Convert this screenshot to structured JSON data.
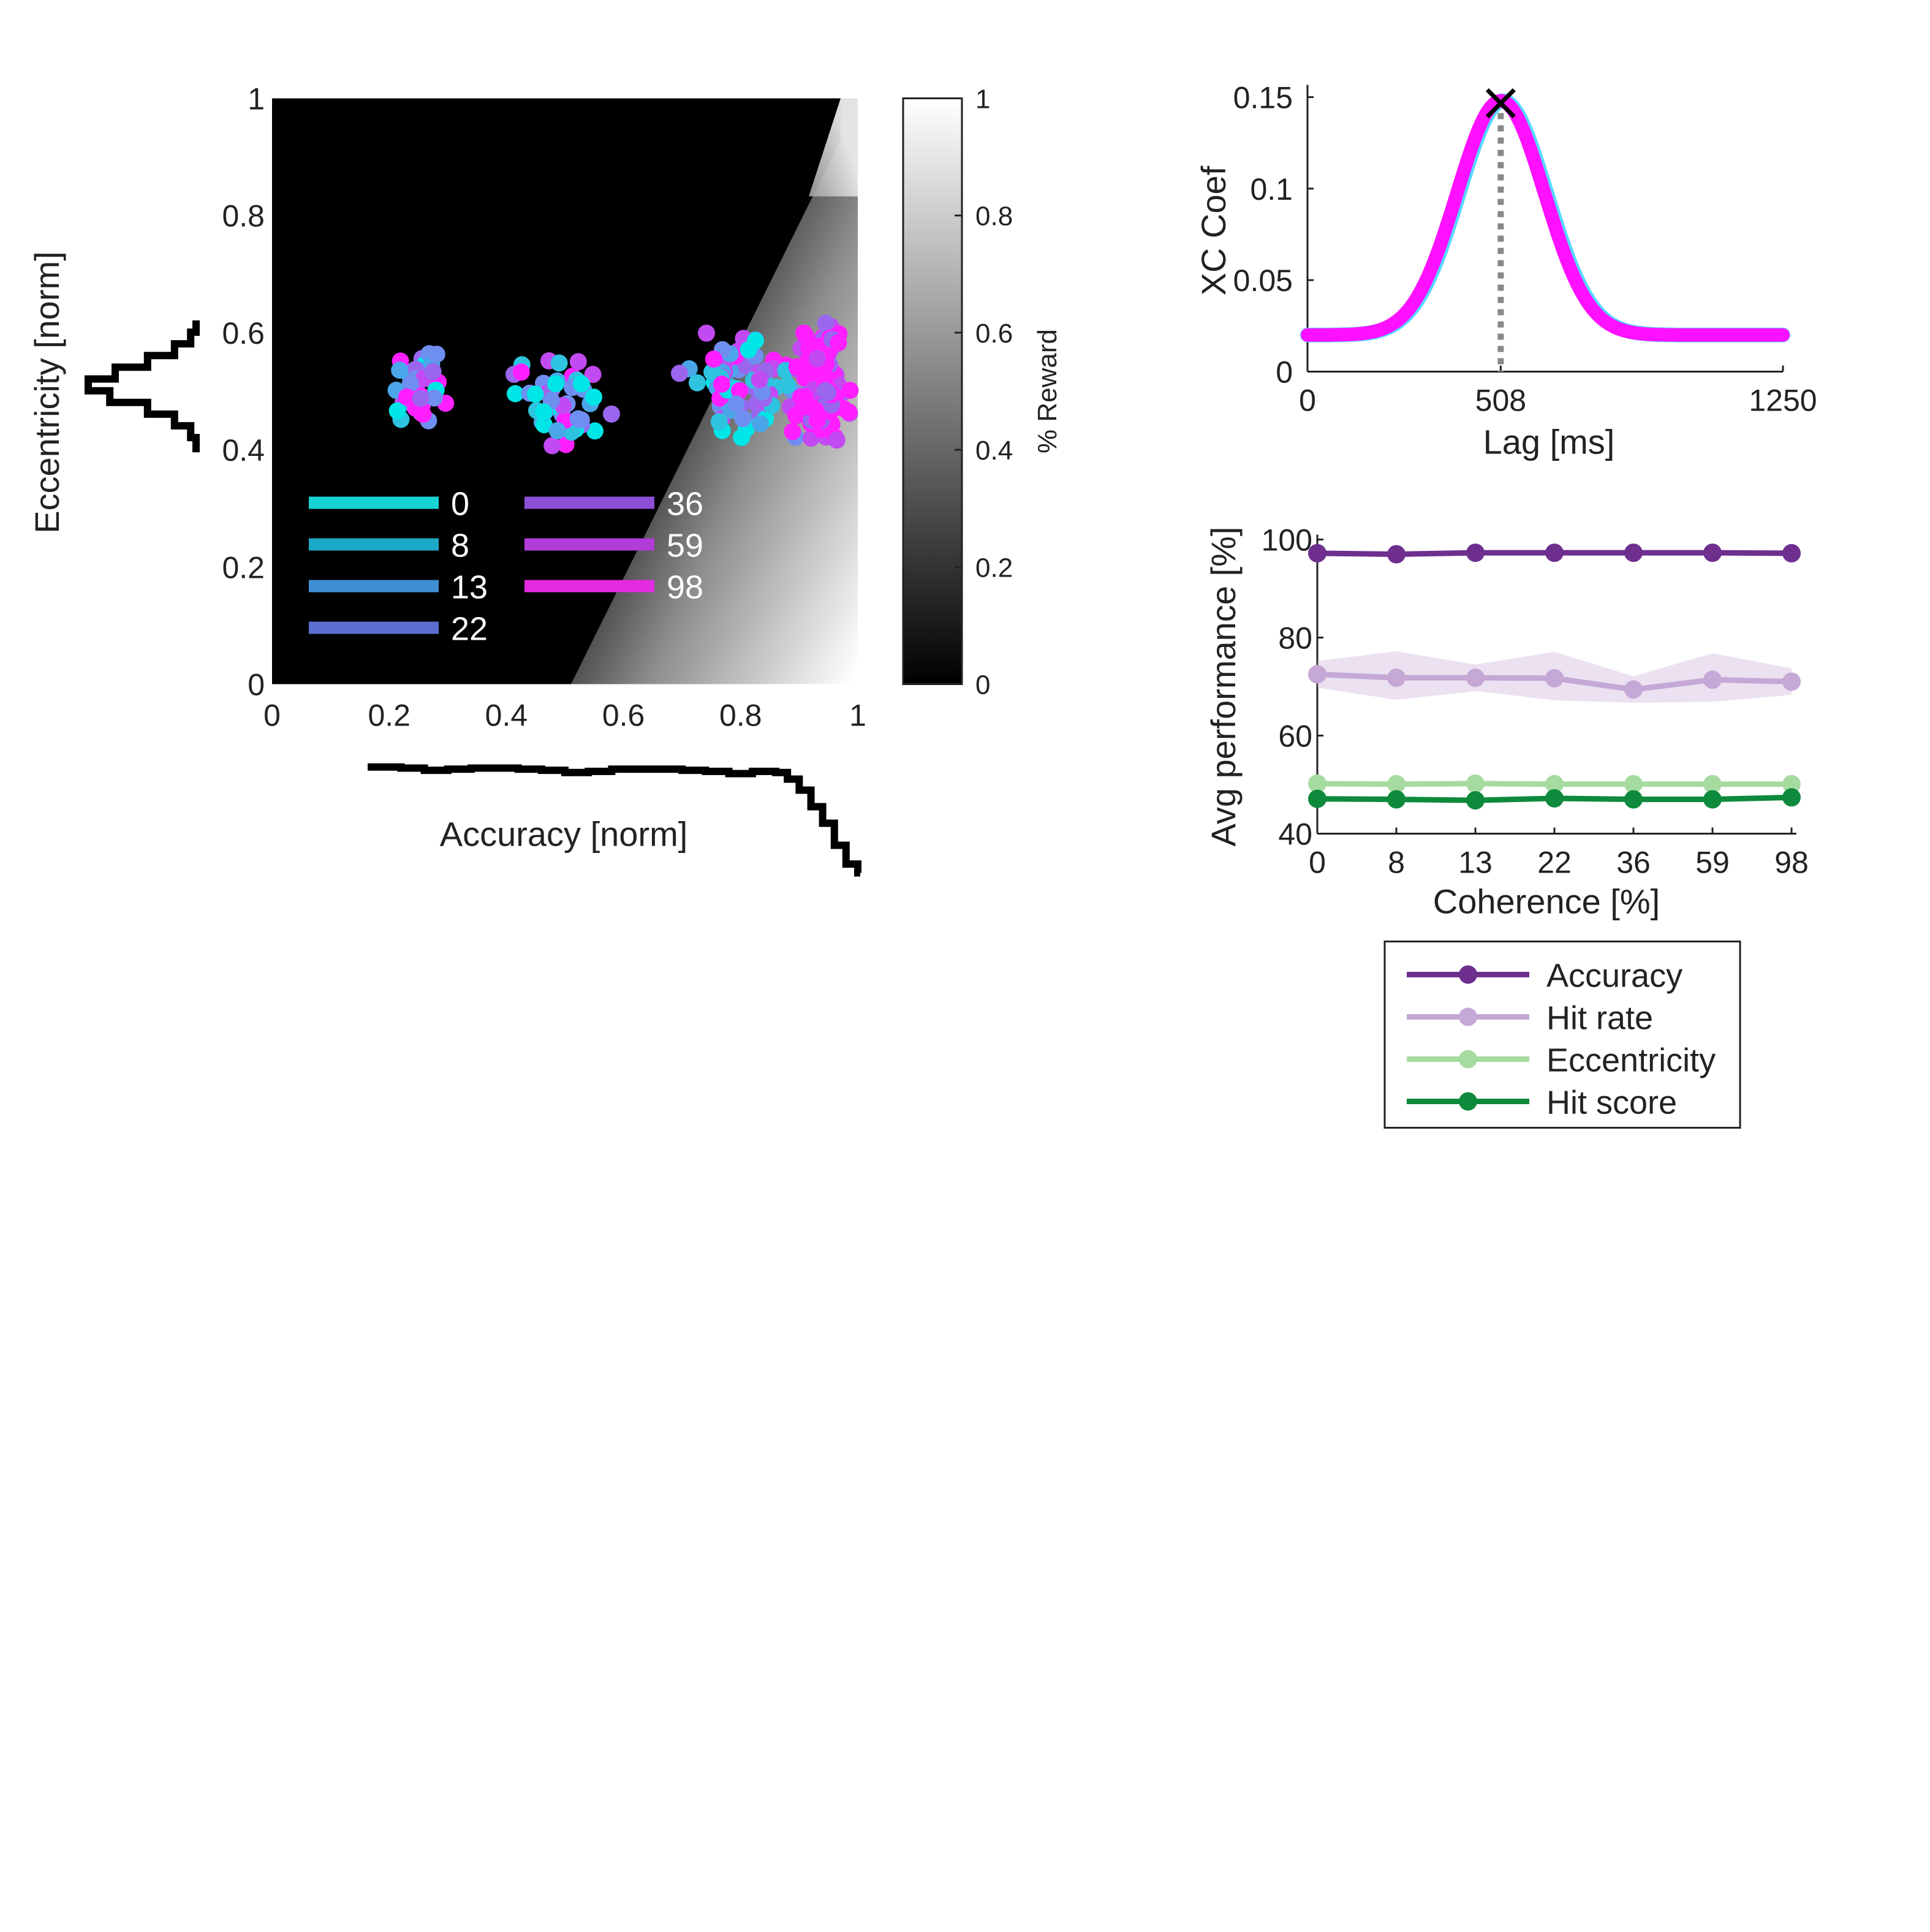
{
  "chart_data": [
    {
      "type": "scatter",
      "title": "",
      "xlabel": "Accuracy [norm]",
      "ylabel": "Eccentricity [norm]",
      "xlim": [
        0,
        1
      ],
      "ylim": [
        0,
        1
      ],
      "xticks": [
        "0",
        "0.2",
        "0.4",
        "0.6",
        "0.8",
        "1"
      ],
      "yticks": [
        "0",
        "0.2",
        "0.4",
        "0.6",
        "0.8",
        "1"
      ],
      "background": "heatmap of % Reward: 0 (black) where eccentricity above the boundary line from (0.51, 0) to (0.96, 0.93), rising to 1 (white) toward accuracy 1 and eccentricity 0",
      "colorbar": {
        "label": "% Reward",
        "range": [
          0,
          1
        ],
        "ticks": [
          "0",
          "0.2",
          "0.4",
          "0.6",
          "0.8",
          "1"
        ],
        "colormap": "gray"
      },
      "legend_placement": "lower-left inside axes",
      "series": [
        {
          "name": "0",
          "color": "#17d2d2"
        },
        {
          "name": "8",
          "color": "#1ea8c8"
        },
        {
          "name": "13",
          "color": "#3f8fd2"
        },
        {
          "name": "22",
          "color": "#5a6fd0"
        },
        {
          "name": "36",
          "color": "#8c4fd6"
        },
        {
          "name": "59",
          "color": "#b23bd9"
        },
        {
          "name": "98",
          "color": "#e32be0"
        }
      ],
      "point_colors": [
        "#00e5e5",
        "#2ec3df",
        "#4aa6e8",
        "#6f8ff0",
        "#9a66ee",
        "#c24af2",
        "#ff1fff"
      ],
      "clusters": [
        {
          "x_range": [
            0.15,
            0.35
          ],
          "y_range": [
            0.43,
            0.58
          ],
          "count": 40
        },
        {
          "x_range": [
            0.39,
            0.59
          ],
          "y_range": [
            0.4,
            0.57
          ],
          "count": 45
        },
        {
          "x_range": [
            0.66,
            0.96
          ],
          "y_range": [
            0.42,
            0.61
          ],
          "count": 80
        },
        {
          "x_range": [
            0.88,
            1.0
          ],
          "y_range": [
            0.41,
            0.62
          ],
          "count": 140
        }
      ],
      "marginal_x_hist": {
        "x": [
          0.18,
          0.22,
          0.26,
          0.3,
          0.34,
          0.38,
          0.42,
          0.46,
          0.5,
          0.54,
          0.58,
          0.62,
          0.66,
          0.7,
          0.74,
          0.78,
          0.82,
          0.86,
          0.88,
          0.9,
          0.92,
          0.94,
          0.96,
          0.98,
          1.0
        ],
        "values": [
          0.96,
          0.95,
          0.93,
          0.94,
          0.95,
          0.95,
          0.94,
          0.93,
          0.91,
          0.92,
          0.94,
          0.94,
          0.94,
          0.93,
          0.92,
          0.9,
          0.92,
          0.91,
          0.85,
          0.75,
          0.6,
          0.45,
          0.25,
          0.08,
          0.0
        ]
      },
      "marginal_y_hist": {
        "y": [
          0.4,
          0.42,
          0.44,
          0.46,
          0.48,
          0.5,
          0.52,
          0.54,
          0.56,
          0.58,
          0.6
        ],
        "values": [
          0.0,
          0.05,
          0.2,
          0.45,
          0.8,
          1.0,
          0.75,
          0.45,
          0.2,
          0.05,
          0.0
        ]
      }
    },
    {
      "type": "line",
      "title": "",
      "xlabel": "Lag [ms]",
      "ylabel": "XC Coef",
      "xlim": [
        0,
        1250
      ],
      "ylim": [
        0,
        0.15
      ],
      "xticks": [
        "0",
        "508",
        "1250"
      ],
      "yticks": [
        "0",
        "0.05",
        "0.1",
        "0.15"
      ],
      "peak": {
        "x": 508,
        "y": 0.148,
        "marker": "x",
        "guide": "dotted vertical line"
      },
      "curve": {
        "baseline": 0.02,
        "peak_x": 508,
        "peak_y": 0.148,
        "width_ms": 115
      },
      "series": [
        {
          "name": "",
          "color": "#55d8ff"
        },
        {
          "name": "",
          "color": "#ff10ff"
        }
      ]
    },
    {
      "type": "line",
      "title": "",
      "xlabel": "Coherence [%]",
      "ylabel": "Avg performance [%]",
      "ylim": [
        40,
        100
      ],
      "categories": [
        "0",
        "8",
        "13",
        "22",
        "36",
        "59",
        "98"
      ],
      "yticks": [
        "40",
        "60",
        "80",
        "100"
      ],
      "legend_placement": "below",
      "series": [
        {
          "name": "Accuracy",
          "color": "#6e2f8f",
          "values": [
            97.2,
            97.0,
            97.3,
            97.3,
            97.3,
            97.3,
            97.2
          ],
          "band": null
        },
        {
          "name": "Hit rate",
          "color": "#c5a8d6",
          "values": [
            72.5,
            71.8,
            71.8,
            71.7,
            69.4,
            71.4,
            71.0
          ],
          "band": 4.5
        },
        {
          "name": "Eccentricity",
          "color": "#a6dba0",
          "values": [
            50.2,
            50.1,
            50.2,
            50.1,
            50.1,
            50.1,
            50.1
          ],
          "band": null
        },
        {
          "name": "Hit score",
          "color": "#0e8a3c",
          "values": [
            47.1,
            47.0,
            46.8,
            47.2,
            47.0,
            47.0,
            47.4
          ],
          "band": null
        }
      ]
    }
  ]
}
